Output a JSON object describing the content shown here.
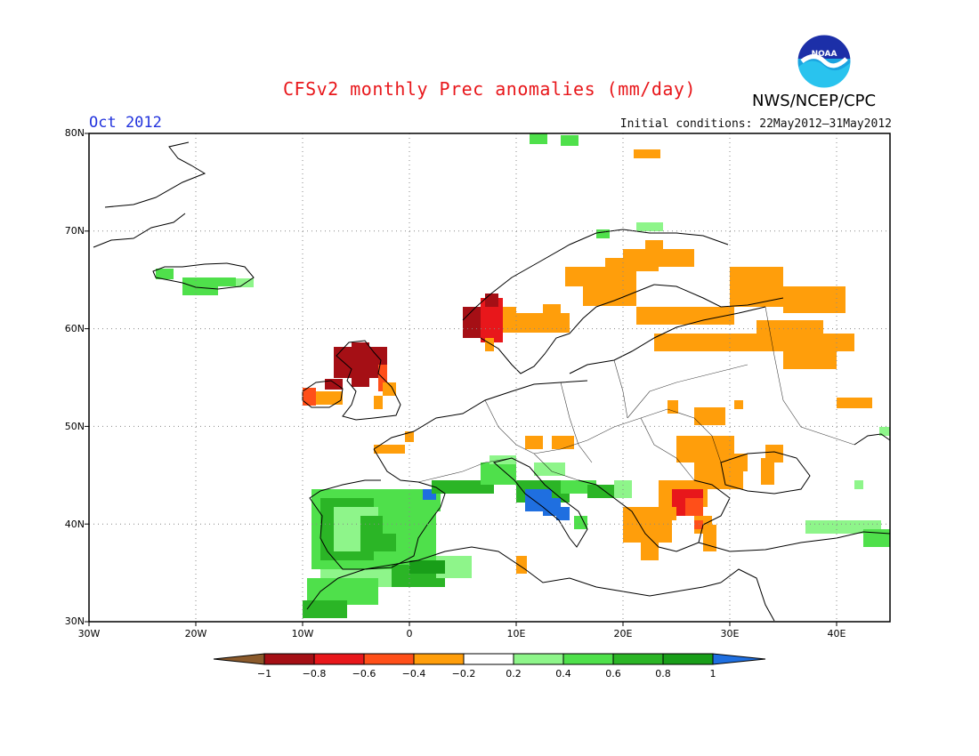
{
  "title": "CFSv2 monthly Prec anomalies (mm/day)",
  "agency": "NWS/NCEP/CPC",
  "logo_text": "NOAA",
  "month": "Oct 2012",
  "initial_conditions": "Initial conditions: 22May2012–31May2012",
  "map": {
    "lat_labels": [
      "80N",
      "70N",
      "60N",
      "50N",
      "40N",
      "30N"
    ],
    "lon_labels": [
      "30W",
      "20W",
      "10W",
      "0",
      "10E",
      "20E",
      "30E",
      "40E"
    ],
    "lon_range": [
      -30,
      45
    ],
    "lat_range": [
      30,
      80
    ],
    "graticule": "dotted"
  },
  "colorbar": {
    "labels": [
      "−1",
      "−0.8",
      "−0.6",
      "−0.4",
      "−0.2",
      "0.2",
      "0.4",
      "0.6",
      "0.8",
      "1"
    ],
    "colors": [
      "#8b5a2b",
      "#a50f15",
      "#e8171b",
      "#ff4f19",
      "#ff9e0b",
      "#ffffff",
      "#8ef58a",
      "#4fe04b",
      "#2bb526",
      "#199e19",
      "#1f6fe0"
    ]
  },
  "chart_data": {
    "type": "heatmap",
    "title": "CFSv2 monthly Prec anomalies (mm/day)",
    "valid": "Oct 2012",
    "units": "mm/day",
    "regions": [
      {
        "region": "Iceland",
        "category": "0.2 to 0.6"
      },
      {
        "region": "Greenland east coast",
        "category": "0.2 to 0.4"
      },
      {
        "region": "Ireland / Scotland",
        "category": "-1 to -0.6"
      },
      {
        "region": "Western Norway",
        "category": "-1 to -0.4"
      },
      {
        "region": "Southern Scandinavia",
        "category": "-0.4 to -0.2"
      },
      {
        "region": "Finland / NW Russia",
        "category": "-0.4 to -0.2"
      },
      {
        "region": "Balkans / Aegean",
        "category": "-0.6 to -0.2"
      },
      {
        "region": "Ukraine / Black Sea north",
        "category": "-0.4 to -0.2"
      },
      {
        "region": "Iberian Peninsula",
        "category": "0.2 to 0.8"
      },
      {
        "region": "Morocco / Algeria coast",
        "category": "0.2 to 0.8"
      },
      {
        "region": "Tyrrhenian Sea",
        "category": "0.6 to 1"
      },
      {
        "region": "Adriatic",
        "category": "0.2 to 0.6"
      },
      {
        "region": "Turkey east",
        "category": "0.2 to 0.4"
      }
    ]
  }
}
